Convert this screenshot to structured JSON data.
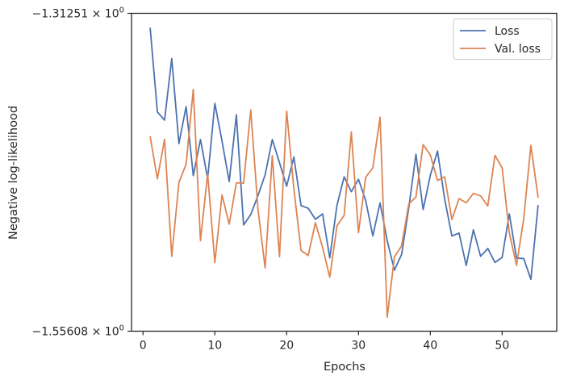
{
  "chart_data": {
    "type": "line",
    "title": "",
    "xlabel": "Epochs",
    "ylabel": "Negative log-likelihood",
    "xlim": [
      -1.6,
      57.6
    ],
    "ylim": [
      -1.55608,
      -1.31251
    ],
    "xticks": [
      0,
      10,
      20,
      30,
      40,
      50
    ],
    "yticks": [
      {
        "value": -1.31251,
        "mantissa": "−1.31251",
        "base": "10",
        "exponent": "0"
      },
      {
        "value": -1.55608,
        "mantissa": "−1.55608",
        "base": "10",
        "exponent": "0"
      }
    ],
    "grid": false,
    "legend": "top-right",
    "x": [
      1,
      2,
      3,
      4,
      5,
      6,
      7,
      8,
      9,
      10,
      11,
      12,
      13,
      14,
      15,
      16,
      17,
      18,
      19,
      20,
      21,
      22,
      23,
      24,
      25,
      26,
      27,
      28,
      29,
      30,
      31,
      32,
      33,
      34,
      35,
      36,
      37,
      38,
      39,
      40,
      41,
      42,
      43,
      44,
      45,
      46,
      47,
      48,
      49,
      50,
      51,
      52,
      53,
      54,
      55
    ],
    "series": [
      {
        "name": "Loss",
        "color": "#4c72b0",
        "values": [
          -1.3239,
          -1.3881,
          -1.3944,
          -1.3472,
          -1.4123,
          -1.384,
          -1.4369,
          -1.4092,
          -1.4392,
          -1.3815,
          -1.4105,
          -1.4414,
          -1.3903,
          -1.4747,
          -1.4667,
          -1.4522,
          -1.4363,
          -1.4092,
          -1.427,
          -1.445,
          -1.4226,
          -1.4598,
          -1.4619,
          -1.4703,
          -1.4662,
          -1.4999,
          -1.4597,
          -1.4378,
          -1.4492,
          -1.4397,
          -1.4559,
          -1.4831,
          -1.4577,
          -1.4868,
          -1.5093,
          -1.4973,
          -1.4616,
          -1.4205,
          -1.4629,
          -1.4367,
          -1.418,
          -1.4549,
          -1.4831,
          -1.4809,
          -1.5057,
          -1.4784,
          -1.4987,
          -1.4927,
          -1.5034,
          -1.4996,
          -1.4662,
          -1.5001,
          -1.5004,
          -1.5163,
          -1.4599
        ]
      },
      {
        "name": "Val. loss",
        "color": "#dd8452",
        "values": [
          -1.4071,
          -1.4393,
          -1.4091,
          -1.4988,
          -1.4421,
          -1.4282,
          -1.3708,
          -1.4867,
          -1.4354,
          -1.5035,
          -1.4516,
          -1.4741,
          -1.4424,
          -1.4427,
          -1.3866,
          -1.4622,
          -1.5076,
          -1.4216,
          -1.499,
          -1.3875,
          -1.4468,
          -1.4942,
          -1.4981,
          -1.4729,
          -1.4919,
          -1.5147,
          -1.4754,
          -1.4674,
          -1.4035,
          -1.4806,
          -1.4381,
          -1.4309,
          -1.3921,
          -1.5453,
          -1.4992,
          -1.4907,
          -1.4586,
          -1.4532,
          -1.4131,
          -1.4211,
          -1.4406,
          -1.4377,
          -1.4705,
          -1.4545,
          -1.4577,
          -1.4505,
          -1.4524,
          -1.4601,
          -1.4213,
          -1.431,
          -1.4807,
          -1.5056,
          -1.47,
          -1.4137,
          -1.4534
        ]
      }
    ]
  }
}
